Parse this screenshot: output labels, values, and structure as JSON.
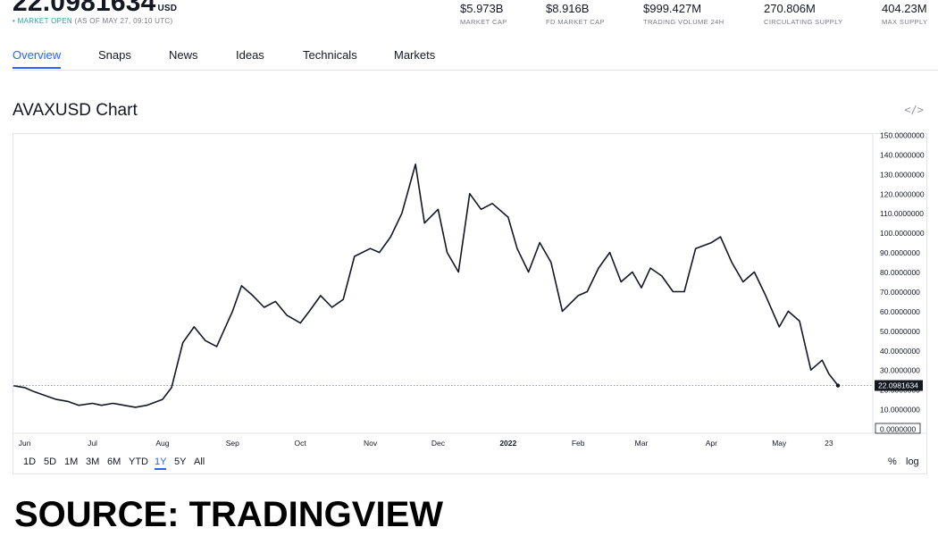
{
  "header": {
    "price": "22.0981634",
    "price_unit": "USD",
    "status_open": "• MARKET OPEN",
    "status_time": "(AS OF MAY 27, 09:10 UTC)"
  },
  "stats": [
    {
      "value": "$5.973B",
      "label": "MARKET CAP"
    },
    {
      "value": "$8.916B",
      "label": "FD MARKET CAP"
    },
    {
      "value": "$999.427M",
      "label": "TRADING VOLUME 24H"
    },
    {
      "value": "270.806M",
      "label": "CIRCULATING SUPPLY"
    },
    {
      "value": "404.23M",
      "label": "MAX SUPPLY"
    }
  ],
  "tabs": [
    "Overview",
    "Snaps",
    "News",
    "Ideas",
    "Technicals",
    "Markets"
  ],
  "active_tab": "Overview",
  "chart_title": "AVAXUSD Chart",
  "embed_icon": "code-icon",
  "ranges": [
    "1D",
    "5D",
    "1M",
    "3M",
    "6M",
    "YTD",
    "1Y",
    "5Y",
    "All"
  ],
  "active_range": "1Y",
  "scale_options": [
    "%",
    "log"
  ],
  "source": "SOURCE: TRADINGVIEW",
  "colors": {
    "accent": "#2962ff",
    "line": "#131722",
    "market_open": "#26a69a",
    "label_bg": "#131722"
  },
  "chart_data": {
    "type": "line",
    "title": "AVAXUSD Chart",
    "xlabel": "",
    "ylabel": "",
    "x_tick_labels": [
      "Jun",
      "Jul",
      "Aug",
      "Sep",
      "Oct",
      "Nov",
      "Dec",
      "2022",
      "Feb",
      "Mar",
      "Apr",
      "May",
      "23"
    ],
    "y_tick_labels": [
      "0.0000000",
      "10.0000000",
      "20.0000000",
      "30.0000000",
      "40.0000000",
      "50.0000000",
      "60.0000000",
      "70.0000000",
      "80.0000000",
      "90.0000000",
      "100.0000000",
      "110.0000000",
      "120.0000000",
      "130.0000000",
      "140.0000000",
      "150.0000000"
    ],
    "ylim": [
      0,
      150
    ],
    "last_value": 22.0981634,
    "last_value_label": "22.0981634",
    "grid": false,
    "series": [
      {
        "x": [
          "2021-05-27",
          "2021-06-01",
          "2021-06-05",
          "2021-06-10",
          "2021-06-15",
          "2021-06-20",
          "2021-06-25",
          "2021-07-01",
          "2021-07-05",
          "2021-07-10",
          "2021-07-15",
          "2021-07-20",
          "2021-07-25",
          "2021-08-01",
          "2021-08-05",
          "2021-08-10",
          "2021-08-15",
          "2021-08-20",
          "2021-08-25",
          "2021-09-01",
          "2021-09-05",
          "2021-09-10",
          "2021-09-15",
          "2021-09-20",
          "2021-09-25",
          "2021-10-01",
          "2021-10-05",
          "2021-10-10",
          "2021-10-15",
          "2021-10-20",
          "2021-10-25",
          "2021-11-01",
          "2021-11-05",
          "2021-11-10",
          "2021-11-15",
          "2021-11-21",
          "2021-11-25",
          "2021-12-01",
          "2021-12-05",
          "2021-12-10",
          "2021-12-15",
          "2021-12-20",
          "2021-12-25",
          "2022-01-01",
          "2022-01-05",
          "2022-01-10",
          "2022-01-15",
          "2022-01-20",
          "2022-01-25",
          "2022-02-01",
          "2022-02-05",
          "2022-02-10",
          "2022-02-15",
          "2022-02-20",
          "2022-02-25",
          "2022-03-01",
          "2022-03-05",
          "2022-03-10",
          "2022-03-15",
          "2022-03-20",
          "2022-03-25",
          "2022-04-01",
          "2022-04-05",
          "2022-04-10",
          "2022-04-15",
          "2022-04-20",
          "2022-04-25",
          "2022-05-01",
          "2022-05-05",
          "2022-05-10",
          "2022-05-15",
          "2022-05-20",
          "2022-05-23",
          "2022-05-27"
        ],
        "values": [
          22,
          21,
          19,
          17,
          15,
          14,
          12,
          13,
          12,
          13,
          12,
          11,
          12,
          15,
          21,
          44,
          52,
          45,
          42,
          60,
          73,
          68,
          62,
          65,
          58,
          54,
          60,
          68,
          62,
          66,
          88,
          92,
          90,
          98,
          110,
          135,
          105,
          112,
          90,
          80,
          120,
          112,
          115,
          108,
          92,
          80,
          95,
          85,
          60,
          68,
          70,
          82,
          90,
          75,
          80,
          72,
          82,
          78,
          70,
          70,
          92,
          95,
          98,
          85,
          75,
          80,
          68,
          52,
          60,
          55,
          30,
          35,
          28,
          22.1
        ]
      }
    ]
  }
}
